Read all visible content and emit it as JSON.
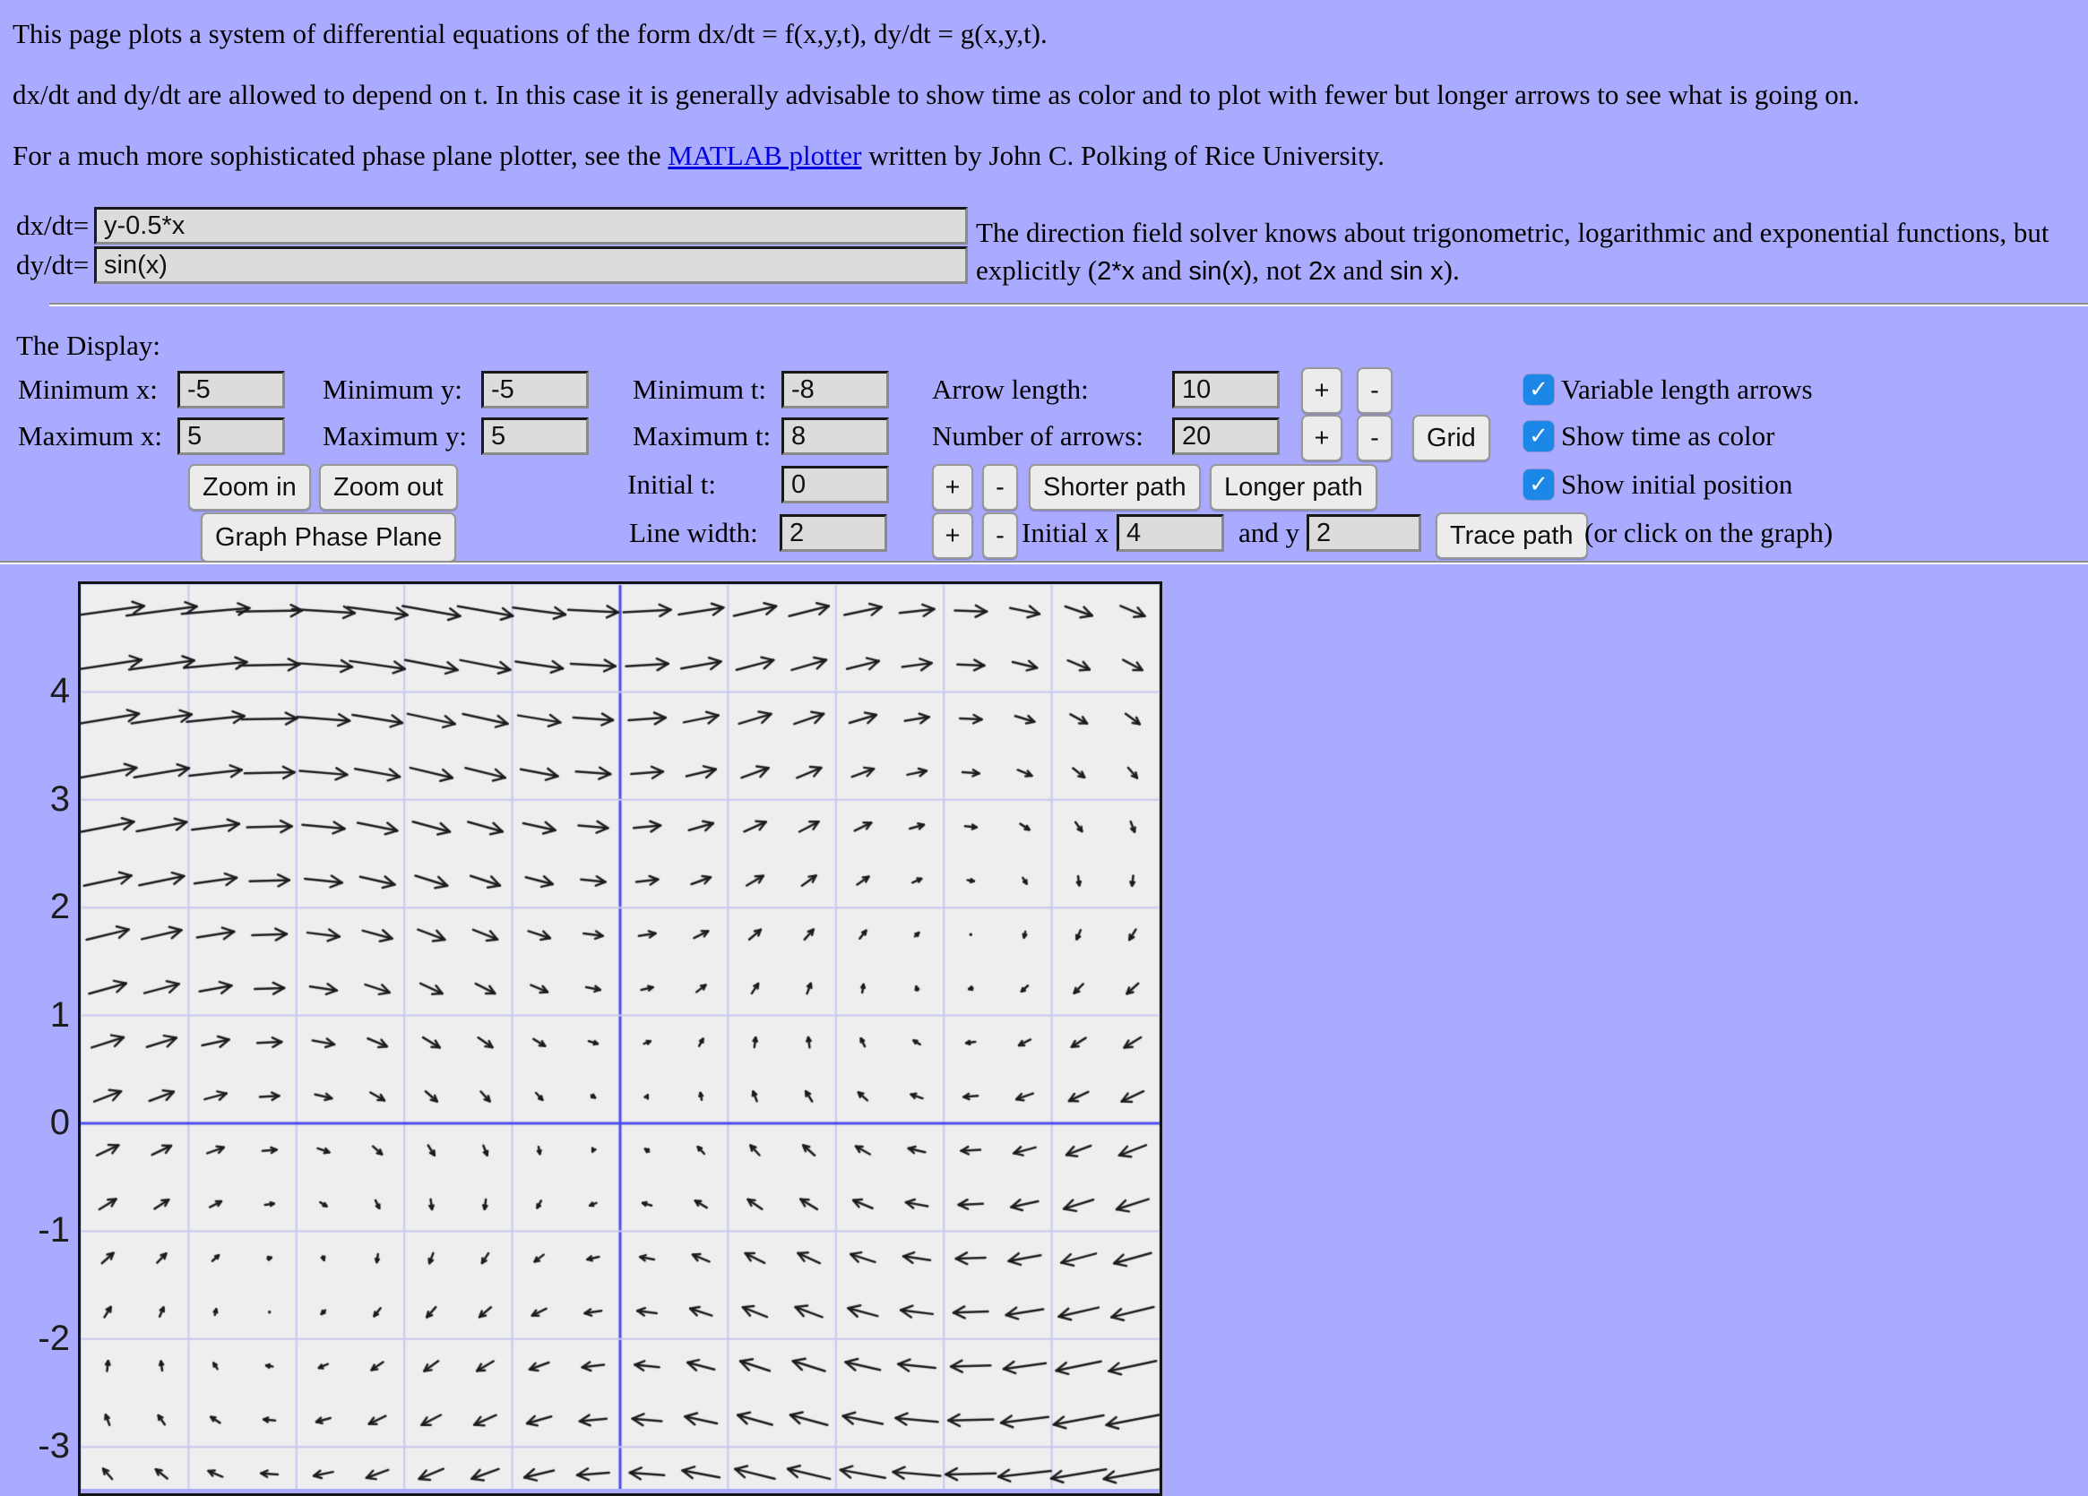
{
  "header": {
    "p1": "This page plots a system of differential equations of the form dx/dt = f(x,y,t), dy/dt = g(x,y,t).",
    "p2": "dx/dt and dy/dt are allowed to depend on t. In this case it is generally advisable to show time as color and to plot with fewer but longer arrows to see what is going on.",
    "p3_before": "For a much more sophisticated phase plane plotter, see the ",
    "p3_link": "MATLAB plotter",
    "p3_after": " written by John C. Polking of Rice University."
  },
  "equations": {
    "dx_label": "dx/dt=",
    "dx_value": "y-0.5*x",
    "dy_label": "dy/dt=",
    "dy_value": "sin(x)"
  },
  "note": {
    "line1": "The direction field solver knows about trigonometric, logarithmic and exponential functions, but",
    "line2_segments": [
      {
        "text": "explicitly (",
        "code": false
      },
      {
        "text": "2*x",
        "code": true
      },
      {
        "text": " and ",
        "code": false
      },
      {
        "text": "sin(x)",
        "code": true
      },
      {
        "text": ", not ",
        "code": false
      },
      {
        "text": "2x",
        "code": true
      },
      {
        "text": " and ",
        "code": false
      },
      {
        "text": "sin x",
        "code": true
      },
      {
        "text": ").",
        "code": false
      }
    ]
  },
  "display": {
    "title": "The Display:",
    "min_x_label": "Minimum x:",
    "min_x": "-5",
    "min_y_label": "Minimum y:",
    "min_y": "-5",
    "min_t_label": "Minimum t:",
    "min_t": "-8",
    "arrow_length_label": "Arrow length:",
    "arrow_length": "10",
    "max_x_label": "Maximum x:",
    "max_x": "5",
    "max_y_label": "Maximum y:",
    "max_y": "5",
    "max_t_label": "Maximum t:",
    "max_t": "8",
    "num_arrows_label": "Number of arrows:",
    "num_arrows": "20",
    "plus": "+",
    "minus": "-",
    "grid_button": "Grid",
    "zoom_in": "Zoom in",
    "zoom_out": "Zoom out",
    "initial_t_label": "Initial t:",
    "initial_t": "0",
    "shorter_path": "Shorter path",
    "longer_path": "Longer path",
    "graph_button": "Graph Phase Plane",
    "line_width_label": "Line width:",
    "line_width": "2",
    "initial_x_label": "Initial x",
    "initial_x": "4",
    "and_y_label": "and y",
    "and_y": "2",
    "trace_button": "Trace path",
    "hint": "(or click on the graph)",
    "checkboxes": [
      {
        "label": "Variable length arrows",
        "checked": true
      },
      {
        "label": "Show time as color",
        "checked": true
      },
      {
        "label": "Show initial position",
        "checked": true
      }
    ]
  },
  "plot": {
    "dxdt": "y-0.5*x",
    "dydt": "sin(x)",
    "xmin": -5,
    "xmax": 5,
    "ymin": -5,
    "ymax": 5,
    "arrows": 20,
    "arrow_length": 10,
    "initial_t": 0,
    "y_axis_labels": [
      4,
      3,
      2,
      1,
      0,
      -1,
      -2,
      -3
    ],
    "colors": {
      "bg": "#eeeeee",
      "grid": "#c7c7f2",
      "axis": "#4c4cf0",
      "arrow": "#1c1c1c",
      "border": "#141414",
      "page_bg": "#aaaaff",
      "checkbox": "#1b87e6",
      "link": "#0000dd"
    }
  }
}
